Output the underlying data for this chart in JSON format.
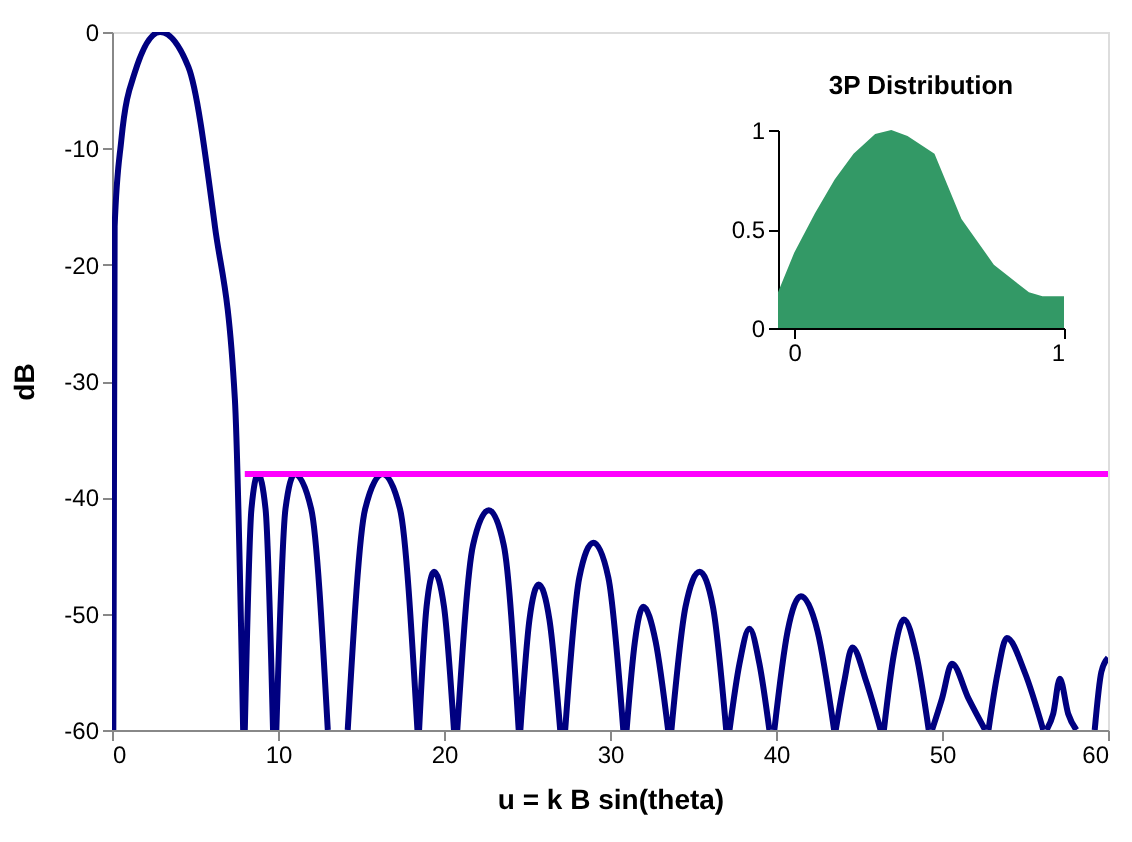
{
  "chart_data": [
    {
      "type": "line",
      "xlabel": "u = k B sin(theta)",
      "ylabel": "dB",
      "xlim": [
        0,
        60
      ],
      "ylim": [
        -60,
        0
      ],
      "xticks": [
        0,
        10,
        20,
        30,
        40,
        50,
        60
      ],
      "yticks": [
        0,
        -10,
        -20,
        -30,
        -40,
        -50,
        -60
      ],
      "series": [
        {
          "color": "#000080",
          "x": [
            0.08,
            0.16,
            0.56,
            1.37,
            2.9,
            4.6,
            6.2,
            7.4,
            7.9,
            7.95,
            8.0,
            8.4,
            8.8,
            9.25,
            9.7,
            9.8,
            9.9,
            10.45,
            11.0,
            12.0,
            13.0,
            13.6,
            14.2,
            15.25,
            16.3,
            17.35,
            18.4,
            18.45,
            18.5,
            18.95,
            19.4,
            20.0,
            20.6,
            20.7,
            20.8,
            21.75,
            22.7,
            23.6,
            24.5,
            24.55,
            24.6,
            25.15,
            25.7,
            26.35,
            27.0,
            27.15,
            27.3,
            28.15,
            29.0,
            29.9,
            30.8,
            30.9,
            31.0,
            31.5,
            32.0,
            32.75,
            33.5,
            33.6,
            33.7,
            34.55,
            35.4,
            36.2,
            37.0,
            37.1,
            37.2,
            37.8,
            38.4,
            39.0,
            39.6,
            39.75,
            39.9,
            40.7,
            41.5,
            42.5,
            43.5,
            43.55,
            43.6,
            44.1,
            44.6,
            45.45,
            46.3,
            46.4,
            46.5,
            47.1,
            47.7,
            48.45,
            49.2,
            49.3,
            49.4,
            50.0,
            50.6,
            51.6,
            52.6,
            52.7,
            52.8,
            53.35,
            53.9,
            55.0,
            56.1,
            56.2,
            56.3,
            56.7,
            57.1,
            57.6,
            58.1,
            58.6,
            59.2,
            59.6,
            60
          ],
          "values": [
            -60,
            -16.7,
            -9.3,
            -3.5,
            0,
            -3,
            -16.7,
            -31.5,
            -60,
            null,
            -60,
            -41,
            -38,
            -41,
            -60,
            null,
            -60,
            -41,
            -38,
            -41,
            -60,
            null,
            -60,
            -41,
            -38,
            -41,
            -60,
            null,
            -60,
            -49.4,
            -46.4,
            -49.4,
            -60,
            null,
            -60,
            -44.1,
            -41.1,
            -44.1,
            -60,
            null,
            -60,
            -50.5,
            -47.5,
            -50.5,
            -60,
            null,
            -60,
            -46.9,
            -43.9,
            -46.9,
            -60,
            null,
            -60,
            -52.4,
            -49.4,
            -52.4,
            -60,
            null,
            -60,
            -49.4,
            -46.4,
            -49.4,
            -60,
            null,
            -60,
            -54.3,
            -51.3,
            -54.3,
            -60,
            null,
            -60,
            -51.5,
            -48.5,
            -51.5,
            -60,
            null,
            -60,
            -55.9,
            -52.9,
            -55.9,
            -60,
            null,
            -60,
            -53.5,
            -50.5,
            -53.5,
            -60,
            null,
            -60,
            -57.3,
            -54.3,
            -57.3,
            -60,
            null,
            -60,
            -55.1,
            -52.1,
            -55.1,
            -60,
            null,
            -60,
            -58.6,
            -55.6,
            -58.6,
            -60,
            null,
            -60,
            -55,
            -53.8
          ]
        },
        {
          "color": "#ff00ff",
          "x": [
            8,
            60
          ],
          "values": [
            -38,
            -38
          ]
        }
      ]
    },
    {
      "type": "area",
      "title": "3P Distribution",
      "xlim": [
        -0.06,
        1.0
      ],
      "ylim": [
        0,
        1
      ],
      "xticks": [
        0,
        1
      ],
      "yticks": [
        0,
        0.5,
        1
      ],
      "color": "#339966",
      "x": [
        -0.06,
        0.0,
        0.077,
        0.15,
        0.22,
        0.3,
        0.36,
        0.42,
        0.52,
        0.62,
        0.74,
        0.87,
        0.92,
        1.0
      ],
      "values": [
        0.18,
        0.38,
        0.58,
        0.75,
        0.88,
        0.98,
        1.0,
        0.97,
        0.88,
        0.55,
        0.32,
        0.18,
        0.16,
        0.16
      ]
    }
  ]
}
